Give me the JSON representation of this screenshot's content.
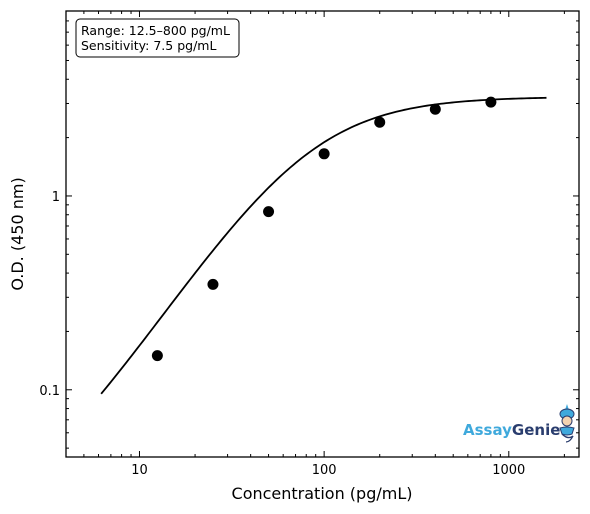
{
  "chart_data": {
    "type": "scatter",
    "title": "",
    "xlabel": "Concentration (pg/mL)",
    "ylabel": "O.D. (450 nm)",
    "x_scale": "log",
    "y_scale": "log",
    "xlim": [
      4,
      2400
    ],
    "ylim": [
      0.045,
      9
    ],
    "x_ticks": [
      10,
      100,
      1000
    ],
    "x_tick_labels": [
      "10",
      "100",
      "1000"
    ],
    "y_ticks": [
      0.1,
      1
    ],
    "y_tick_labels": [
      "0.1",
      "1"
    ],
    "grid": false,
    "annotation": {
      "lines": [
        "Range: 12.5–800 pg/mL",
        "Sensitivity: 7.5 pg/mL"
      ],
      "placement": "top-left"
    },
    "points": {
      "x": [
        12.5,
        25,
        50,
        100,
        200,
        400,
        800
      ],
      "y": [
        0.15,
        0.35,
        0.83,
        1.65,
        2.4,
        2.8,
        3.05
      ]
    },
    "fit_curve": {
      "model": "4PL",
      "a": 0.018,
      "d": 3.25,
      "c": 80,
      "b": 1.45,
      "x_range": [
        6.2,
        1600
      ]
    },
    "colors": {
      "points": "#000000",
      "curve": "#000000"
    }
  },
  "logo": {
    "part1": "Assay",
    "part2": "Genie",
    "color1": "#3fa9dc",
    "color2": "#2a3d6e"
  }
}
